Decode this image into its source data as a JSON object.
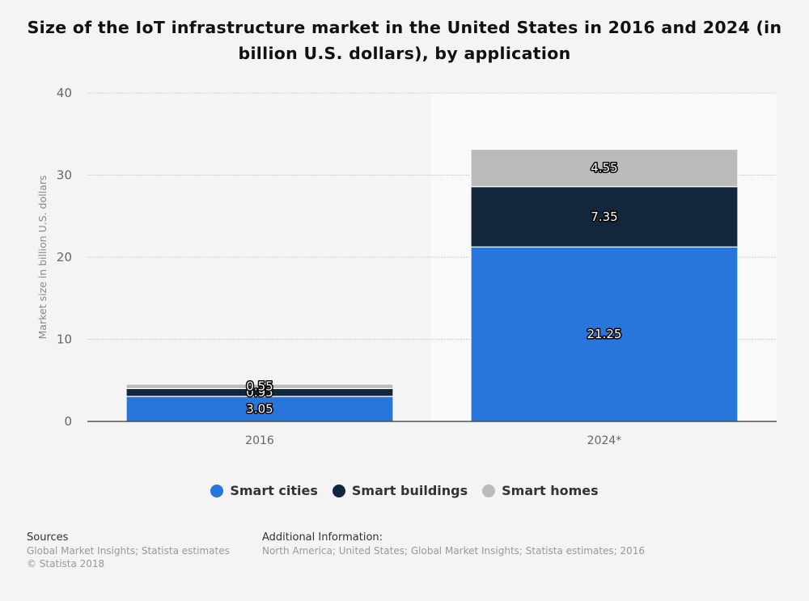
{
  "title": "Size of the IoT infrastructure market in the United States in 2016 and 2024 (in billion U.S. dollars), by application",
  "chart_data": {
    "type": "bar",
    "stacked": true,
    "title": "Size of the IoT infrastructure market in the United States in 2016 and 2024 (in billion U.S. dollars), by application",
    "xlabel": "",
    "ylabel": "Market size in billion U.S. dollars",
    "ylim": [
      0,
      40
    ],
    "yticks": [
      "0",
      "10",
      "20",
      "30",
      "40"
    ],
    "categories": [
      "2016",
      "2024*"
    ],
    "series": [
      {
        "name": "Smart cities",
        "color": "#2875dc",
        "values": [
          3.05,
          21.25
        ]
      },
      {
        "name": "Smart buildings",
        "color": "#12263c",
        "values": [
          0.95,
          7.35
        ]
      },
      {
        "name": "Smart homes",
        "color": "#bbbbbb",
        "values": [
          0.55,
          4.55
        ]
      }
    ],
    "data_labels": [
      [
        "3.05",
        "21.25"
      ],
      [
        "0.95",
        "7.35"
      ],
      [
        "0.55",
        "4.55"
      ]
    ],
    "legend_position": "bottom",
    "grid": true
  },
  "legend": [
    "Smart cities",
    "Smart buildings",
    "Smart homes"
  ],
  "footer": {
    "sources_heading": "Sources",
    "sources_text": "Global Market Insights; Statista estimates",
    "copyright": "© Statista 2018",
    "additional_heading": "Additional Information:",
    "additional_text": "North America; United States; Global Market Insights; Statista estimates; 2016"
  }
}
